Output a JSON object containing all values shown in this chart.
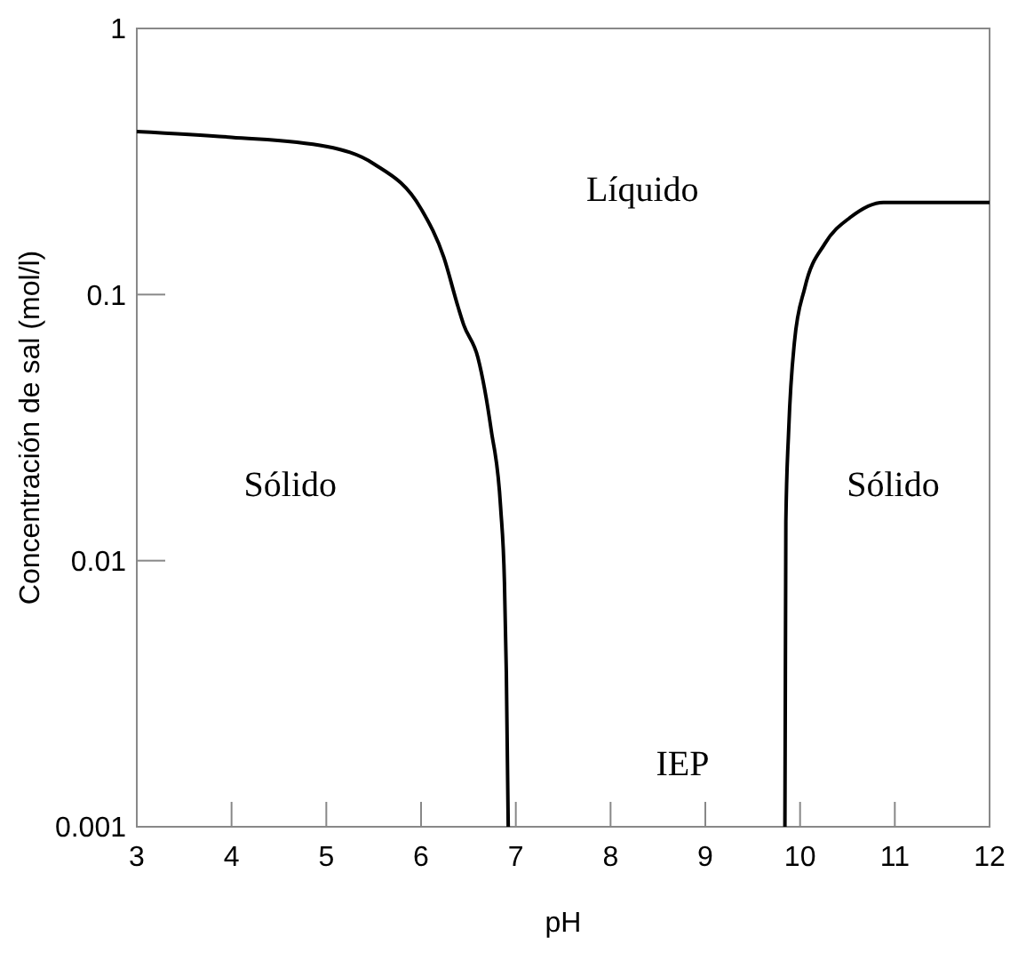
{
  "chart_data": {
    "type": "line",
    "xlabel": "pH",
    "ylabel": "Concentración de sal (mol/l)",
    "log": "y",
    "xlim": [
      3,
      12
    ],
    "ylim": [
      0.001,
      1
    ],
    "xticks": [
      3,
      4,
      5,
      6,
      7,
      8,
      9,
      10,
      11,
      12
    ],
    "yticks": [
      0.001,
      0.01,
      0.1,
      1
    ],
    "grid": false,
    "marker": "none",
    "line_style": "solid",
    "series": [
      {
        "color": "#000000",
        "x": [
          3,
          4,
          5,
          5.5,
          6,
          6.24,
          6.39,
          6.45,
          6.6,
          6.74,
          6.84,
          6.88,
          6.9,
          6.92
        ],
        "values": [
          0.41,
          0.39,
          0.36,
          0.31,
          0.21,
          0.138,
          0.09,
          0.077,
          0.058,
          0.031,
          0.0158,
          0.0083,
          0.0038,
          0.001
        ]
      },
      {
        "color": "#000000",
        "x": [
          9.84,
          9.85,
          9.88,
          9.94,
          10.05,
          10.26,
          10.53,
          10.88,
          12
        ],
        "values": [
          0.001,
          0.014,
          0.031,
          0.066,
          0.106,
          0.155,
          0.195,
          0.222,
          0.222
        ]
      }
    ],
    "annotations": [
      "Líquido",
      "Sólido",
      "Sólido",
      "IEP"
    ]
  }
}
